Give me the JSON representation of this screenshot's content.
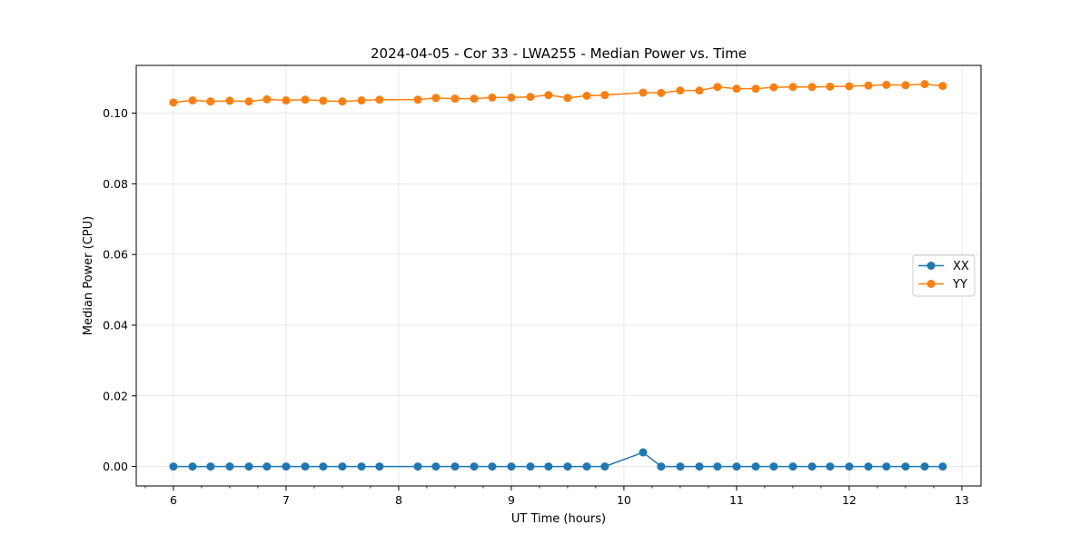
{
  "chart_data": {
    "type": "line",
    "title": "2024-04-05 - Cor 33 - LWA255 - Median Power vs. Time",
    "xlabel": "UT Time (hours)",
    "ylabel": "Median Power (CPU)",
    "xlim": [
      5.67,
      13.17
    ],
    "ylim": [
      -0.0055,
      0.1135
    ],
    "xticks": [
      6,
      7,
      8,
      9,
      10,
      11,
      12,
      13
    ],
    "xtick_labels": [
      "6",
      "7",
      "8",
      "9",
      "10",
      "11",
      "12",
      "13"
    ],
    "x_minor_step": 0.25,
    "yticks": [
      0.0,
      0.02,
      0.04,
      0.06,
      0.08,
      0.1
    ],
    "ytick_labels": [
      "0.00",
      "0.02",
      "0.04",
      "0.06",
      "0.08",
      "0.10"
    ],
    "grid": true,
    "legend_position": "center-right",
    "series": [
      {
        "name": "XX",
        "color": "#1f77b4",
        "x": [
          6.0,
          6.17,
          6.33,
          6.5,
          6.67,
          6.83,
          7.0,
          7.17,
          7.33,
          7.5,
          7.67,
          7.83,
          8.17,
          8.33,
          8.5,
          8.67,
          8.83,
          9.0,
          9.17,
          9.33,
          9.5,
          9.67,
          9.83,
          10.17,
          10.33,
          10.5,
          10.67,
          10.83,
          11.0,
          11.17,
          11.33,
          11.5,
          11.67,
          11.83,
          12.0,
          12.17,
          12.33,
          12.5,
          12.67,
          12.83
        ],
        "values": [
          0.0,
          0.0,
          0.0,
          0.0,
          0.0,
          0.0,
          0.0,
          0.0,
          0.0,
          0.0,
          0.0,
          0.0,
          0.0,
          0.0,
          0.0,
          0.0,
          0.0,
          0.0,
          0.0,
          0.0,
          0.0,
          0.0,
          0.0,
          0.004,
          0.0,
          0.0,
          0.0,
          0.0,
          0.0,
          0.0,
          0.0,
          0.0,
          0.0,
          0.0,
          0.0,
          0.0,
          0.0,
          0.0,
          0.0,
          0.0
        ]
      },
      {
        "name": "YY",
        "color": "#ff7f0e",
        "x": [
          6.0,
          6.17,
          6.33,
          6.5,
          6.67,
          6.83,
          7.0,
          7.17,
          7.33,
          7.5,
          7.67,
          7.83,
          8.17,
          8.33,
          8.5,
          8.67,
          8.83,
          9.0,
          9.17,
          9.33,
          9.5,
          9.67,
          9.83,
          10.17,
          10.33,
          10.5,
          10.67,
          10.83,
          11.0,
          11.17,
          11.33,
          11.5,
          11.67,
          11.83,
          12.0,
          12.17,
          12.33,
          12.5,
          12.67,
          12.83
        ],
        "values": [
          0.103,
          0.1036,
          0.1033,
          0.1035,
          0.1033,
          0.1039,
          0.1036,
          0.1038,
          0.1035,
          0.1033,
          0.1036,
          0.1038,
          0.1038,
          0.1043,
          0.1041,
          0.1041,
          0.1044,
          0.1044,
          0.1046,
          0.1051,
          0.1043,
          0.1049,
          0.1051,
          0.1058,
          0.1057,
          0.1064,
          0.1064,
          0.1074,
          0.1069,
          0.1069,
          0.1073,
          0.1074,
          0.1074,
          0.1075,
          0.1076,
          0.1078,
          0.108,
          0.1079,
          0.1082,
          0.1077
        ]
      }
    ]
  }
}
